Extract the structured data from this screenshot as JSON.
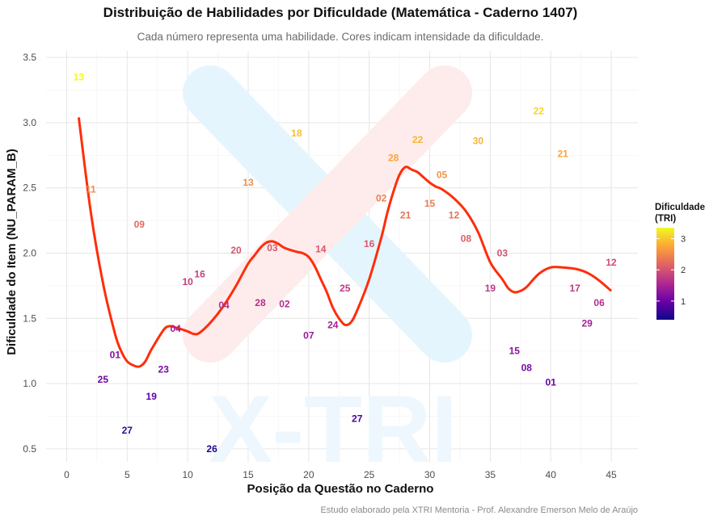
{
  "chart_data": {
    "type": "scatter",
    "title": "Distribuição de Habilidades por Dificuldade (Matemática - Caderno 1407)",
    "subtitle": "Cada número representa uma habilidade. Cores indicam intensidade da dificuldade.",
    "xlabel": "Posição da Questão no Caderno",
    "ylabel": "Dificuldade do Item (NU_PARAM_B)",
    "caption": "Estudo elaborado pela XTRI Mentoria - Prof. Alexandre Emerson Melo de Araújo",
    "watermark": "X-TRI",
    "xlim": [
      -1.7,
      47.2
    ],
    "ylim": [
      0.4,
      3.55
    ],
    "x_ticks": [
      0,
      5,
      10,
      15,
      20,
      25,
      30,
      35,
      40,
      45
    ],
    "y_ticks": [
      0.5,
      1.0,
      1.5,
      2.0,
      2.5,
      3.0,
      3.5
    ],
    "x_tick_labels": [
      "0",
      "5",
      "10",
      "15",
      "20",
      "25",
      "30",
      "35",
      "40",
      "45"
    ],
    "y_tick_labels": [
      "0.5",
      "1.0",
      "1.5",
      "2.0",
      "2.5",
      "3.0",
      "3.5"
    ],
    "grid": true,
    "legend": {
      "title_line1": "Dificuldade",
      "title_line2": "(TRI)",
      "placement": "right",
      "range": [
        0.4,
        3.35
      ],
      "ticks": [
        1,
        2,
        3
      ],
      "tick_labels": [
        "1",
        "2",
        "3"
      ],
      "colors": [
        "#0d0887",
        "#6a00a8",
        "#b12a90",
        "#e16462",
        "#fca636",
        "#f0f921"
      ]
    },
    "points": [
      {
        "x": 1,
        "y": 3.35,
        "label": "13"
      },
      {
        "x": 2,
        "y": 2.49,
        "label": "11"
      },
      {
        "x": 3,
        "y": 1.03,
        "label": "25"
      },
      {
        "x": 4,
        "y": 1.22,
        "label": "01"
      },
      {
        "x": 5,
        "y": 0.64,
        "label": "27"
      },
      {
        "x": 6,
        "y": 2.22,
        "label": "09"
      },
      {
        "x": 7,
        "y": 0.9,
        "label": "19"
      },
      {
        "x": 8,
        "y": 1.11,
        "label": "23"
      },
      {
        "x": 9,
        "y": 1.42,
        "label": "04"
      },
      {
        "x": 10,
        "y": 1.78,
        "label": "10"
      },
      {
        "x": 11,
        "y": 1.84,
        "label": "16"
      },
      {
        "x": 12,
        "y": 0.5,
        "label": "26"
      },
      {
        "x": 13,
        "y": 1.6,
        "label": "04"
      },
      {
        "x": 14,
        "y": 2.02,
        "label": "20"
      },
      {
        "x": 15,
        "y": 2.54,
        "label": "13"
      },
      {
        "x": 16,
        "y": 1.62,
        "label": "28"
      },
      {
        "x": 17,
        "y": 2.04,
        "label": "03"
      },
      {
        "x": 18,
        "y": 1.61,
        "label": "02"
      },
      {
        "x": 19,
        "y": 2.92,
        "label": "18"
      },
      {
        "x": 20,
        "y": 1.37,
        "label": "07"
      },
      {
        "x": 21,
        "y": 2.03,
        "label": "14"
      },
      {
        "x": 22,
        "y": 1.45,
        "label": "24"
      },
      {
        "x": 23,
        "y": 1.73,
        "label": "25"
      },
      {
        "x": 24,
        "y": 0.73,
        "label": "27"
      },
      {
        "x": 25,
        "y": 2.07,
        "label": "16"
      },
      {
        "x": 26,
        "y": 2.42,
        "label": "02"
      },
      {
        "x": 27,
        "y": 2.73,
        "label": "28"
      },
      {
        "x": 28,
        "y": 2.29,
        "label": "21"
      },
      {
        "x": 29,
        "y": 2.87,
        "label": "22"
      },
      {
        "x": 30,
        "y": 2.38,
        "label": "15"
      },
      {
        "x": 31,
        "y": 2.6,
        "label": "05"
      },
      {
        "x": 32,
        "y": 2.29,
        "label": "12"
      },
      {
        "x": 33,
        "y": 2.11,
        "label": "08"
      },
      {
        "x": 34,
        "y": 2.86,
        "label": "30"
      },
      {
        "x": 35,
        "y": 1.73,
        "label": "19"
      },
      {
        "x": 36,
        "y": 2.0,
        "label": "03"
      },
      {
        "x": 37,
        "y": 1.25,
        "label": "15"
      },
      {
        "x": 38,
        "y": 1.12,
        "label": "08"
      },
      {
        "x": 39,
        "y": 3.09,
        "label": "22"
      },
      {
        "x": 40,
        "y": 1.01,
        "label": "01"
      },
      {
        "x": 41,
        "y": 2.76,
        "label": "21"
      },
      {
        "x": 42,
        "y": 1.73,
        "label": "17"
      },
      {
        "x": 43,
        "y": 1.46,
        "label": "29"
      },
      {
        "x": 44,
        "y": 1.62,
        "label": "06"
      },
      {
        "x": 45,
        "y": 1.93,
        "label": "12"
      }
    ],
    "smooth_curve": {
      "color": "#ff2d0a",
      "x": [
        1,
        2,
        3,
        4,
        4.5,
        5,
        5.5,
        6,
        6.5,
        7,
        8,
        8.5,
        9,
        10,
        10.5,
        11,
        12,
        13,
        14,
        15,
        15.5,
        16,
        16.5,
        17,
        17.5,
        18,
        19,
        19.5,
        20,
        20.5,
        21,
        21.5,
        22,
        22.5,
        23,
        23.5,
        24,
        25,
        26,
        26.5,
        27,
        27.5,
        28,
        28.5,
        29,
        29.5,
        30,
        30.5,
        31,
        32,
        33,
        34,
        35,
        36,
        36.5,
        37,
        37.5,
        38,
        39,
        40,
        41,
        42,
        43,
        44,
        45
      ],
      "y": [
        3.04,
        2.31,
        1.77,
        1.38,
        1.25,
        1.17,
        1.14,
        1.13,
        1.17,
        1.26,
        1.41,
        1.44,
        1.43,
        1.4,
        1.38,
        1.39,
        1.48,
        1.6,
        1.75,
        1.92,
        1.98,
        2.04,
        2.08,
        2.09,
        2.07,
        2.04,
        2.01,
        2.0,
        1.97,
        1.9,
        1.8,
        1.7,
        1.58,
        1.5,
        1.45,
        1.47,
        1.56,
        1.8,
        2.12,
        2.31,
        2.47,
        2.6,
        2.66,
        2.64,
        2.62,
        2.58,
        2.54,
        2.51,
        2.49,
        2.42,
        2.32,
        2.16,
        1.93,
        1.8,
        1.73,
        1.7,
        1.71,
        1.74,
        1.84,
        1.89,
        1.89,
        1.88,
        1.85,
        1.79,
        1.71
      ]
    }
  }
}
